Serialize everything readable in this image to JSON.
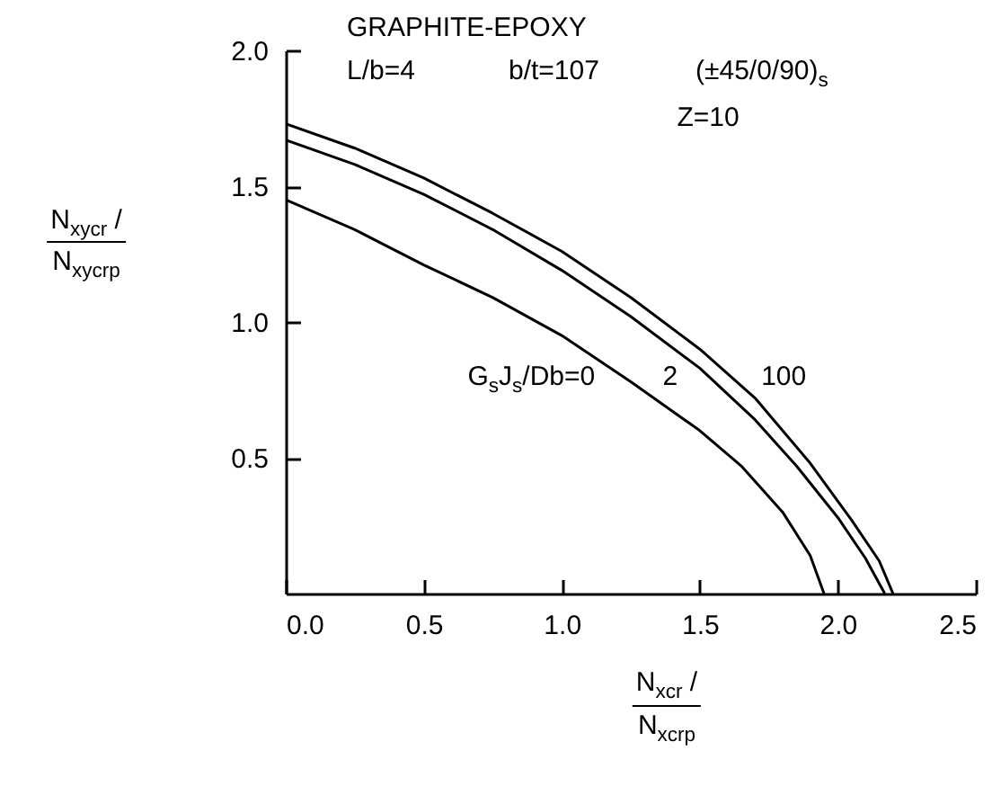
{
  "chart_data": {
    "type": "line",
    "title": "GRAPHITE-EPOXY",
    "annotations": [
      "L/b=4",
      "b/t=107",
      "(±45/0/90)$_{s}$",
      "Z=10"
    ],
    "xlabel": "N$_{xcr}$ / N$_{xcrp}$",
    "ylabel": "N$_{xycr}$ / N$_{xycrp}$",
    "xlim": [
      0,
      2.5
    ],
    "ylim": [
      0,
      2.0
    ],
    "xticks": [
      {
        "value": 0,
        "label": "0.0"
      },
      {
        "value": 0.5,
        "label": "0.5"
      },
      {
        "value": 1,
        "label": "1.0"
      },
      {
        "value": 1.5,
        "label": "1.5"
      },
      {
        "value": 2,
        "label": "2.0"
      },
      {
        "value": 2.5,
        "label": "2.5"
      }
    ],
    "yticks": [
      {
        "value": 0.5,
        "label": "0.5"
      },
      {
        "value": 1,
        "label": "1.0"
      },
      {
        "value": 1.5,
        "label": "1.5"
      },
      {
        "value": 2,
        "label": "2.0"
      }
    ],
    "grid": false,
    "legend": false,
    "series": [
      {
        "name": "G$_{s}$J$_{s}$/Db=0",
        "color": "#000000",
        "x": [
          0,
          0.25,
          0.5,
          0.75,
          1.0,
          1.25,
          1.5,
          1.65,
          1.8,
          1.9,
          1.95
        ],
        "values": [
          1.45,
          1.34,
          1.21,
          1.09,
          0.95,
          0.78,
          0.6,
          0.47,
          0.3,
          0.14,
          0
        ]
      },
      {
        "name": "2",
        "color": "#000000",
        "x": [
          0,
          0.25,
          0.5,
          0.75,
          1.0,
          1.25,
          1.5,
          1.7,
          1.85,
          2.0,
          2.1,
          2.17
        ],
        "values": [
          1.67,
          1.58,
          1.47,
          1.34,
          1.19,
          1.02,
          0.83,
          0.64,
          0.47,
          0.28,
          0.13,
          0
        ]
      },
      {
        "name": "100",
        "color": "#000000",
        "x": [
          0,
          0.25,
          0.5,
          0.75,
          1.0,
          1.25,
          1.5,
          1.7,
          1.9,
          2.05,
          2.15,
          2.2
        ],
        "values": [
          1.73,
          1.64,
          1.53,
          1.4,
          1.26,
          1.09,
          0.9,
          0.72,
          0.48,
          0.27,
          0.12,
          0
        ]
      }
    ]
  }
}
